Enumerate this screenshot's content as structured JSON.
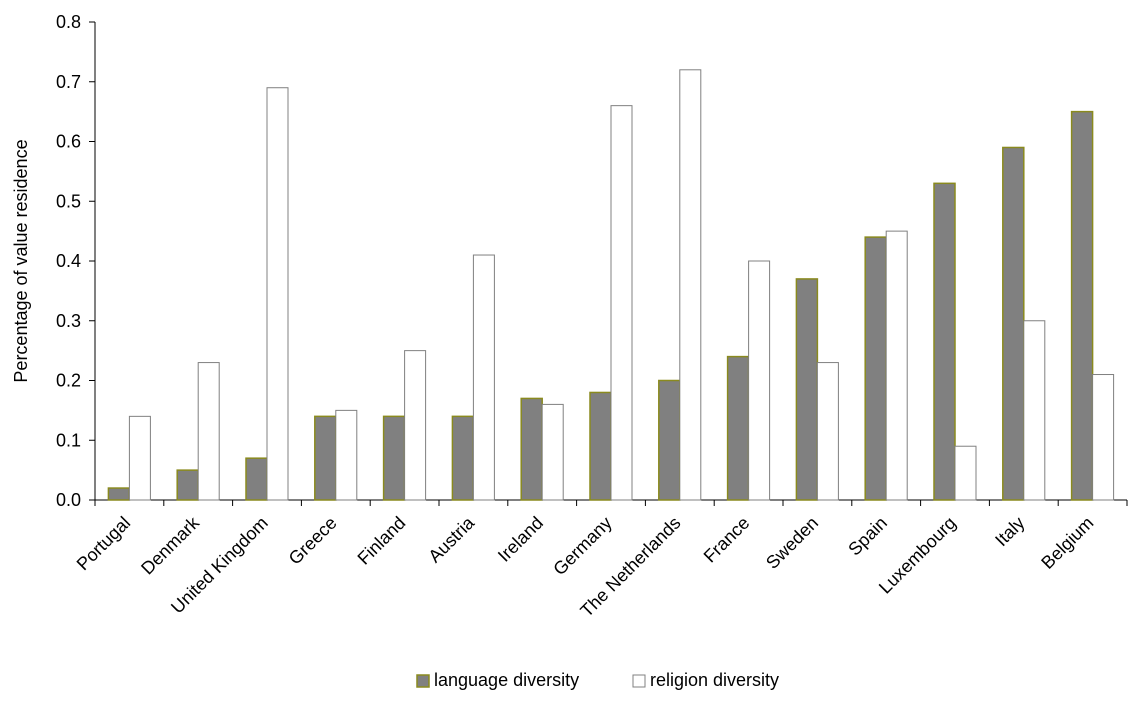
{
  "chart_data": {
    "type": "bar",
    "title": "",
    "xlabel": "",
    "ylabel": "Percentage of value residence",
    "ylim": [
      0,
      0.8
    ],
    "yticks": [
      "0.0",
      "0.1",
      "0.2",
      "0.3",
      "0.4",
      "0.5",
      "0.6",
      "0.7",
      "0.8"
    ],
    "grid": false,
    "legend_position": "bottom-center",
    "categories": [
      "Portugal",
      "Denmark",
      "United Kingdom",
      "Greece",
      "Finland",
      "Austria",
      "Ireland",
      "Germany",
      "The Netherlands",
      "France",
      "Sweden",
      "Spain",
      "Luxembourg",
      "Italy",
      "Belgium"
    ],
    "series": [
      {
        "name": "language diversity",
        "fill": "#808080",
        "stroke": "#8a8a1e",
        "values": [
          0.02,
          0.05,
          0.07,
          0.14,
          0.14,
          0.14,
          0.17,
          0.18,
          0.2,
          0.24,
          0.37,
          0.44,
          0.53,
          0.59,
          0.65
        ]
      },
      {
        "name": "religion diversity",
        "fill": "#ffffff",
        "stroke": "#808080",
        "values": [
          0.14,
          0.23,
          0.69,
          0.15,
          0.25,
          0.41,
          0.16,
          0.66,
          0.72,
          0.4,
          0.23,
          0.45,
          0.09,
          0.3,
          0.21
        ]
      }
    ]
  }
}
